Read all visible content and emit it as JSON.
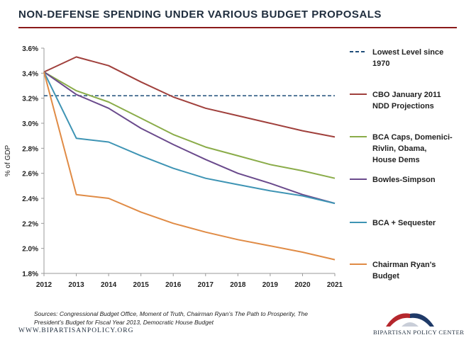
{
  "title": "NON-DEFENSE SPENDING UNDER VARIOUS BUDGET PROPOSALS",
  "source": "Sources: Congressional Budget Office, Moment of Truth, Chairman Ryan’s The Path to Prosperity, The President’s Budget for Fiscal Year 2013, Democratic House Budget",
  "website": "WWW.BIPARTISANPOLICY.ORG",
  "org_name": "BIPARTISAN POLICY CENTER",
  "colors": {
    "title": "#1f2d3d",
    "rule": "#8b1a1a",
    "logo_red": "#b5272d",
    "logo_blue": "#1f3a68"
  },
  "chart_data": {
    "type": "line",
    "title": "",
    "xlabel": "",
    "ylabel": "% of GDP",
    "x": [
      2012,
      2013,
      2014,
      2015,
      2016,
      2017,
      2018,
      2019,
      2020,
      2021
    ],
    "ylim": [
      1.8,
      3.6
    ],
    "yticks": [
      "1.8%",
      "2.0%",
      "2.2%",
      "2.4%",
      "2.6%",
      "2.8%",
      "3.0%",
      "3.2%",
      "3.4%",
      "3.6%"
    ],
    "grid": false,
    "legend_position": "right",
    "reference_line": {
      "name": "Lowest Level since 1970",
      "legend_lines": [
        "Lowest Level since",
        "1970"
      ],
      "value": 3.22,
      "color": "#1f4e79",
      "dashed": true
    },
    "series": [
      {
        "name": "CBO January 2011 NDD Projections",
        "legend_lines": [
          "CBO January 2011",
          "NDD Projections"
        ],
        "color": "#a0403c",
        "values": [
          3.41,
          3.53,
          3.46,
          3.33,
          3.21,
          3.12,
          3.06,
          3.0,
          2.94,
          2.89
        ]
      },
      {
        "name": "BCA Caps, Domenici-Rivlin, Obama, House Dems",
        "legend_lines": [
          "BCA Caps, Domenici-",
          "Rivlin, Obama,",
          "House Dems"
        ],
        "color": "#8aac49",
        "values": [
          3.41,
          3.26,
          3.17,
          3.04,
          2.91,
          2.81,
          2.74,
          2.67,
          2.62,
          2.56
        ]
      },
      {
        "name": "Bowles-Simpson",
        "legend_lines": [
          "Bowles-Simpson"
        ],
        "color": "#6a4a8c",
        "values": [
          3.41,
          3.23,
          3.12,
          2.96,
          2.83,
          2.71,
          2.6,
          2.52,
          2.43,
          2.36
        ]
      },
      {
        "name": "BCA + Sequester",
        "legend_lines": [
          "BCA + Sequester"
        ],
        "color": "#3e94b4",
        "values": [
          3.41,
          2.88,
          2.85,
          2.74,
          2.64,
          2.56,
          2.51,
          2.46,
          2.42,
          2.36
        ]
      },
      {
        "name": "Chairman Ryan's Budget",
        "legend_lines": [
          "Chairman Ryan's",
          "Budget"
        ],
        "color": "#e08b45",
        "values": [
          3.41,
          2.43,
          2.4,
          2.29,
          2.2,
          2.13,
          2.07,
          2.02,
          1.97,
          1.91
        ]
      }
    ]
  }
}
